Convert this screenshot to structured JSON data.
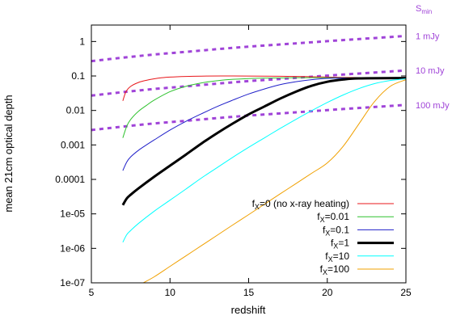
{
  "chart_data": {
    "type": "line",
    "title": "",
    "xlabel": "redshift",
    "ylabel": "mean 21cm optical depth",
    "xlim": [
      5,
      25
    ],
    "ylim": [
      1e-07,
      3
    ],
    "yscale": "log",
    "grid": false,
    "legend_position": "bottom-right",
    "x_ticks": [
      5,
      10,
      15,
      20,
      25
    ],
    "y_ticks": [
      {
        "value": 1,
        "label": "1"
      },
      {
        "value": 0.1,
        "label": "0.1"
      },
      {
        "value": 0.01,
        "label": "0.01"
      },
      {
        "value": 0.001,
        "label": "0.001"
      },
      {
        "value": 0.0001,
        "label": "0.0001"
      },
      {
        "value": 1e-05,
        "label": "1e-05"
      },
      {
        "value": 1e-06,
        "label": "1e-06"
      },
      {
        "value": 1e-07,
        "label": "1e-07"
      }
    ],
    "series": [
      {
        "name": "f_X=0 (no x-ray heating)",
        "legend_main": "f",
        "legend_sub": "X",
        "legend_rest": "=0 (no x-ray heating)",
        "color": "#e8171b",
        "width": 1,
        "x": [
          7.0,
          7.2,
          7.5,
          8,
          8.5,
          9,
          9.5,
          10,
          11,
          12,
          14,
          16,
          18,
          20,
          22,
          25
        ],
        "y": [
          0.019,
          0.035,
          0.05,
          0.065,
          0.075,
          0.083,
          0.089,
          0.093,
          0.097,
          0.099,
          0.1,
          0.099,
          0.097,
          0.093,
          0.09,
          0.087
        ]
      },
      {
        "name": "f_X=0.01",
        "legend_main": "f",
        "legend_sub": "X",
        "legend_rest": "=0.01",
        "color": "#2fc22f",
        "width": 1,
        "x": [
          7.0,
          7.25,
          7.5,
          8,
          8.5,
          9,
          10,
          11,
          12,
          13,
          14,
          16,
          18,
          20,
          22,
          25
        ],
        "y": [
          0.0016,
          0.0035,
          0.0055,
          0.0095,
          0.014,
          0.02,
          0.035,
          0.05,
          0.063,
          0.073,
          0.08,
          0.087,
          0.089,
          0.089,
          0.088,
          0.087
        ]
      },
      {
        "name": "f_X=0.1",
        "legend_main": "f",
        "legend_sub": "X",
        "legend_rest": "=0.1",
        "color": "#1f1fc9",
        "width": 1,
        "x": [
          7.0,
          7.25,
          7.5,
          8,
          8.5,
          9,
          10,
          11,
          12,
          13,
          14,
          15,
          16,
          17,
          18,
          19,
          20,
          22,
          25
        ],
        "y": [
          0.00018,
          0.00032,
          0.00045,
          0.0007,
          0.001,
          0.0014,
          0.0027,
          0.0048,
          0.008,
          0.013,
          0.02,
          0.03,
          0.042,
          0.056,
          0.068,
          0.078,
          0.085,
          0.088,
          0.087
        ]
      },
      {
        "name": "f_X=1",
        "legend_main": "f",
        "legend_sub": "X",
        "legend_rest": "=1",
        "color": "#000000",
        "width": 3,
        "x": [
          7.0,
          7.25,
          7.5,
          8,
          9,
          10,
          11,
          12,
          13,
          14,
          15,
          16,
          17,
          18,
          19,
          20,
          21,
          22,
          25
        ],
        "y": [
          1.8e-05,
          2.8e-05,
          3.6e-05,
          5.5e-05,
          0.00012,
          0.00025,
          0.00052,
          0.0011,
          0.0022,
          0.0042,
          0.0077,
          0.013,
          0.022,
          0.035,
          0.052,
          0.068,
          0.079,
          0.085,
          0.087
        ]
      },
      {
        "name": "f_X=10",
        "legend_main": "f",
        "legend_sub": "X",
        "legend_rest": "=10",
        "color": "#00ffff",
        "width": 1,
        "x": [
          7.0,
          7.25,
          7.5,
          8,
          9,
          10,
          11,
          12,
          13,
          14,
          15,
          16,
          17,
          18,
          19,
          20,
          21,
          22,
          23,
          24,
          25
        ],
        "y": [
          1.5e-06,
          2.5e-06,
          3.3e-06,
          5.3e-06,
          1.2e-05,
          2.5e-05,
          5.2e-05,
          0.00011,
          0.00022,
          0.00044,
          0.00085,
          0.0016,
          0.003,
          0.0055,
          0.0098,
          0.017,
          0.028,
          0.043,
          0.06,
          0.074,
          0.083
        ]
      },
      {
        "name": "f_X=100",
        "legend_main": "f",
        "legend_sub": "X",
        "legend_rest": "=100",
        "color": "#f0a000",
        "width": 1,
        "x": [
          8.3,
          9,
          10,
          11,
          12,
          13,
          14,
          15,
          16,
          17,
          18,
          19,
          20,
          21,
          22,
          23,
          24,
          25
        ],
        "y": [
          1e-07,
          1.5e-07,
          3e-07,
          6e-07,
          1.2e-06,
          2.4e-06,
          4.8e-06,
          9.5e-06,
          1.9e-05,
          3.8e-05,
          7.5e-05,
          0.00015,
          0.0003,
          0.0009,
          0.004,
          0.018,
          0.05,
          0.078
        ]
      }
    ],
    "sensitivity_limits": {
      "title_main": "S",
      "title_sub": "min",
      "color": "#a044d8",
      "dash": "dotted",
      "lines": [
        {
          "label": "1 mJy",
          "x": [
            5,
            7,
            9,
            11,
            13,
            15,
            17,
            19,
            21,
            23,
            25
          ],
          "y": [
            0.27,
            0.34,
            0.42,
            0.5,
            0.6,
            0.71,
            0.82,
            0.95,
            1.1,
            1.26,
            1.45
          ]
        },
        {
          "label": "10 mJy",
          "x": [
            5,
            7,
            9,
            11,
            13,
            15,
            17,
            19,
            21,
            23,
            25
          ],
          "y": [
            0.027,
            0.034,
            0.042,
            0.05,
            0.06,
            0.071,
            0.082,
            0.095,
            0.11,
            0.126,
            0.145
          ]
        },
        {
          "label": "100 mJy",
          "x": [
            5,
            7,
            9,
            11,
            13,
            15,
            17,
            19,
            21,
            23,
            25
          ],
          "y": [
            0.0027,
            0.0034,
            0.0042,
            0.005,
            0.006,
            0.0071,
            0.0082,
            0.0095,
            0.011,
            0.0126,
            0.0145
          ]
        }
      ]
    }
  }
}
